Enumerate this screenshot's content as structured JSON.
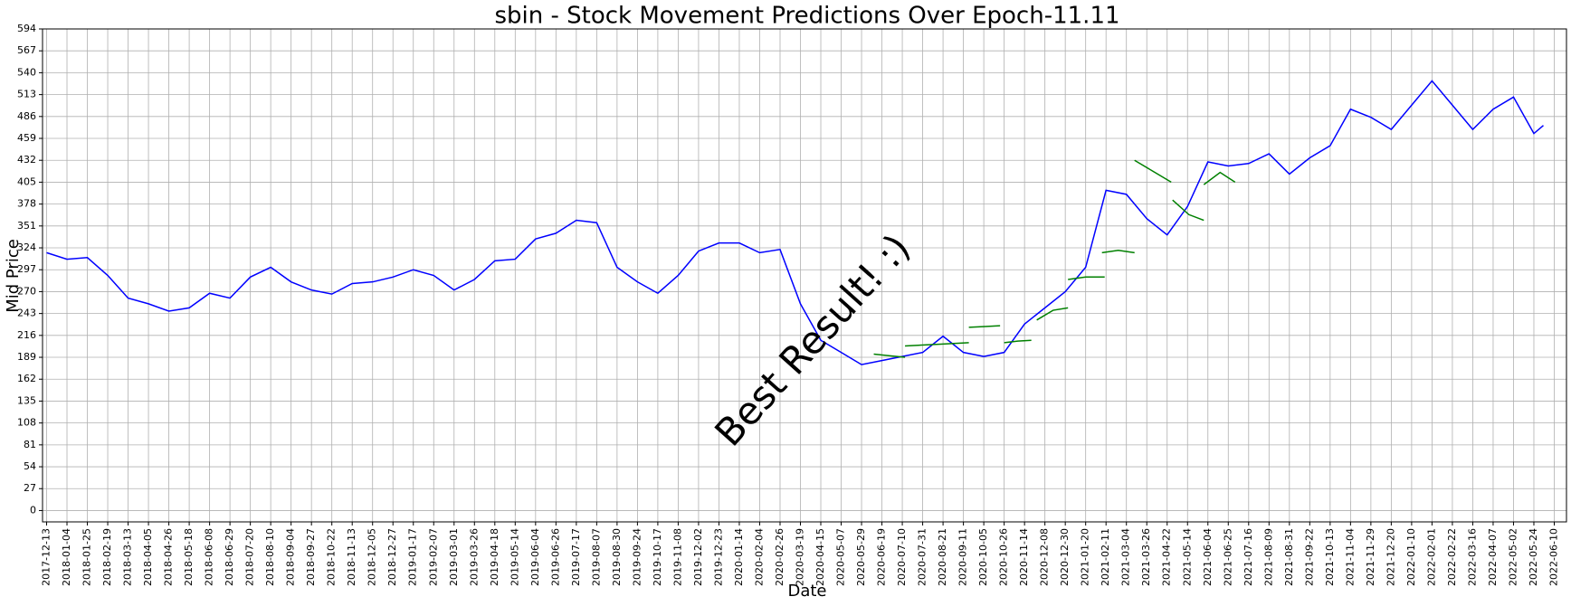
{
  "chart_data": {
    "type": "line",
    "title": "sbin - Stock Movement Predictions Over Epoch-11.11",
    "xlabel": "Date",
    "ylabel": "Mid Price",
    "annotation": "Best Result! :)",
    "annotation_color": "#008000",
    "title_color": "#00bfbf",
    "grid": true,
    "xlim": [
      -3,
      1119
    ],
    "ylim": [
      -14,
      594
    ],
    "yticks": [
      0,
      27,
      54,
      81,
      108,
      135,
      162,
      189,
      216,
      243,
      270,
      297,
      324,
      351,
      378,
      405,
      432,
      459,
      486,
      513,
      540,
      567,
      594
    ],
    "xticks": [
      {
        "value": 0,
        "label": "2017-12-13"
      },
      {
        "value": 15,
        "label": "2018-01-04"
      },
      {
        "value": 30,
        "label": "2018-01-25"
      },
      {
        "value": 45,
        "label": "2018-02-19"
      },
      {
        "value": 60,
        "label": "2018-03-13"
      },
      {
        "value": 75,
        "label": "2018-04-05"
      },
      {
        "value": 90,
        "label": "2018-04-26"
      },
      {
        "value": 105,
        "label": "2018-05-18"
      },
      {
        "value": 120,
        "label": "2018-06-08"
      },
      {
        "value": 135,
        "label": "2018-06-29"
      },
      {
        "value": 150,
        "label": "2018-07-20"
      },
      {
        "value": 165,
        "label": "2018-08-10"
      },
      {
        "value": 180,
        "label": "2018-09-04"
      },
      {
        "value": 195,
        "label": "2018-09-27"
      },
      {
        "value": 210,
        "label": "2018-10-22"
      },
      {
        "value": 225,
        "label": "2018-11-13"
      },
      {
        "value": 240,
        "label": "2018-12-05"
      },
      {
        "value": 255,
        "label": "2018-12-27"
      },
      {
        "value": 270,
        "label": "2019-01-17"
      },
      {
        "value": 285,
        "label": "2019-02-07"
      },
      {
        "value": 300,
        "label": "2019-03-01"
      },
      {
        "value": 315,
        "label": "2019-03-26"
      },
      {
        "value": 330,
        "label": "2019-04-18"
      },
      {
        "value": 345,
        "label": "2019-05-14"
      },
      {
        "value": 360,
        "label": "2019-06-04"
      },
      {
        "value": 375,
        "label": "2019-06-26"
      },
      {
        "value": 390,
        "label": "2019-07-17"
      },
      {
        "value": 405,
        "label": "2019-08-07"
      },
      {
        "value": 420,
        "label": "2019-08-30"
      },
      {
        "value": 435,
        "label": "2019-09-24"
      },
      {
        "value": 450,
        "label": "2019-10-17"
      },
      {
        "value": 465,
        "label": "2019-11-08"
      },
      {
        "value": 480,
        "label": "2019-12-02"
      },
      {
        "value": 495,
        "label": "2019-12-23"
      },
      {
        "value": 510,
        "label": "2020-01-14"
      },
      {
        "value": 525,
        "label": "2020-02-04"
      },
      {
        "value": 540,
        "label": "2020-02-26"
      },
      {
        "value": 555,
        "label": "2020-03-19"
      },
      {
        "value": 570,
        "label": "2020-04-15"
      },
      {
        "value": 585,
        "label": "2020-05-07"
      },
      {
        "value": 600,
        "label": "2020-05-29"
      },
      {
        "value": 615,
        "label": "2020-06-19"
      },
      {
        "value": 630,
        "label": "2020-07-10"
      },
      {
        "value": 645,
        "label": "2020-07-31"
      },
      {
        "value": 660,
        "label": "2020-08-21"
      },
      {
        "value": 675,
        "label": "2020-09-11"
      },
      {
        "value": 690,
        "label": "2020-10-05"
      },
      {
        "value": 705,
        "label": "2020-10-26"
      },
      {
        "value": 720,
        "label": "2020-11-14"
      },
      {
        "value": 735,
        "label": "2020-12-08"
      },
      {
        "value": 750,
        "label": "2020-12-30"
      },
      {
        "value": 765,
        "label": "2021-01-20"
      },
      {
        "value": 780,
        "label": "2021-02-11"
      },
      {
        "value": 795,
        "label": "2021-03-04"
      },
      {
        "value": 810,
        "label": "2021-03-26"
      },
      {
        "value": 825,
        "label": "2021-04-22"
      },
      {
        "value": 840,
        "label": "2021-05-14"
      },
      {
        "value": 855,
        "label": "2021-06-04"
      },
      {
        "value": 870,
        "label": "2021-06-25"
      },
      {
        "value": 885,
        "label": "2021-07-16"
      },
      {
        "value": 900,
        "label": "2021-08-09"
      },
      {
        "value": 915,
        "label": "2021-08-31"
      },
      {
        "value": 930,
        "label": "2021-09-22"
      },
      {
        "value": 945,
        "label": "2021-10-13"
      },
      {
        "value": 960,
        "label": "2021-11-04"
      },
      {
        "value": 975,
        "label": "2021-11-29"
      },
      {
        "value": 990,
        "label": "2021-12-20"
      },
      {
        "value": 1005,
        "label": "2022-01-10"
      },
      {
        "value": 1020,
        "label": "2022-02-01"
      },
      {
        "value": 1035,
        "label": "2022-02-22"
      },
      {
        "value": 1050,
        "label": "2022-03-16"
      },
      {
        "value": 1065,
        "label": "2022-04-07"
      },
      {
        "value": 1080,
        "label": "2022-05-02"
      },
      {
        "value": 1095,
        "label": "2022-05-24"
      },
      {
        "value": 1110,
        "label": "2022-06-10"
      }
    ],
    "series": [
      {
        "color": "#0000ff",
        "x": [
          0,
          15,
          30,
          45,
          60,
          75,
          90,
          105,
          120,
          135,
          150,
          165,
          180,
          195,
          210,
          225,
          240,
          255,
          270,
          285,
          300,
          315,
          330,
          345,
          360,
          375,
          390,
          405,
          420,
          435,
          450,
          465,
          480,
          495,
          510,
          525,
          540,
          555,
          570,
          585,
          600,
          615,
          630,
          645,
          660,
          675,
          690,
          705,
          720,
          735,
          750,
          765,
          780,
          795,
          810,
          825,
          840,
          855,
          870,
          885,
          900,
          915,
          930,
          945,
          960,
          975,
          990,
          1005,
          1020,
          1035,
          1050,
          1065,
          1080,
          1095,
          1102
        ],
        "values": [
          318,
          310,
          312,
          290,
          262,
          255,
          246,
          250,
          268,
          262,
          288,
          300,
          282,
          272,
          267,
          280,
          282,
          288,
          297,
          290,
          272,
          285,
          308,
          310,
          335,
          342,
          358,
          355,
          300,
          282,
          268,
          290,
          320,
          330,
          330,
          318,
          322,
          255,
          210,
          195,
          180,
          185,
          190,
          195,
          215,
          195,
          190,
          195,
          230,
          250,
          270,
          300,
          395,
          390,
          360,
          340,
          375,
          430,
          425,
          428,
          440,
          415,
          435,
          450,
          495,
          485,
          470,
          500,
          530,
          500,
          470,
          495,
          510,
          465,
          475
        ]
      },
      {
        "color": "#008000",
        "x": [
          609,
          620,
          632,
          null,
          632,
          655,
          679,
          null,
          679,
          691,
          702,
          null,
          705,
          715,
          725,
          null,
          729,
          741,
          752,
          null,
          752,
          765,
          779,
          null,
          777,
          789,
          801,
          null,
          801,
          815,
          828,
          null,
          829,
          841,
          852,
          null,
          852,
          864,
          875
        ],
        "values": [
          193,
          191,
          189,
          null,
          203,
          205,
          207,
          null,
          226,
          227,
          228,
          null,
          207,
          209,
          210,
          null,
          235,
          247,
          250,
          null,
          285,
          288,
          288,
          null,
          318,
          321,
          318,
          null,
          432,
          418,
          405,
          null,
          383,
          365,
          358,
          null,
          402,
          417,
          405
        ]
      }
    ]
  }
}
